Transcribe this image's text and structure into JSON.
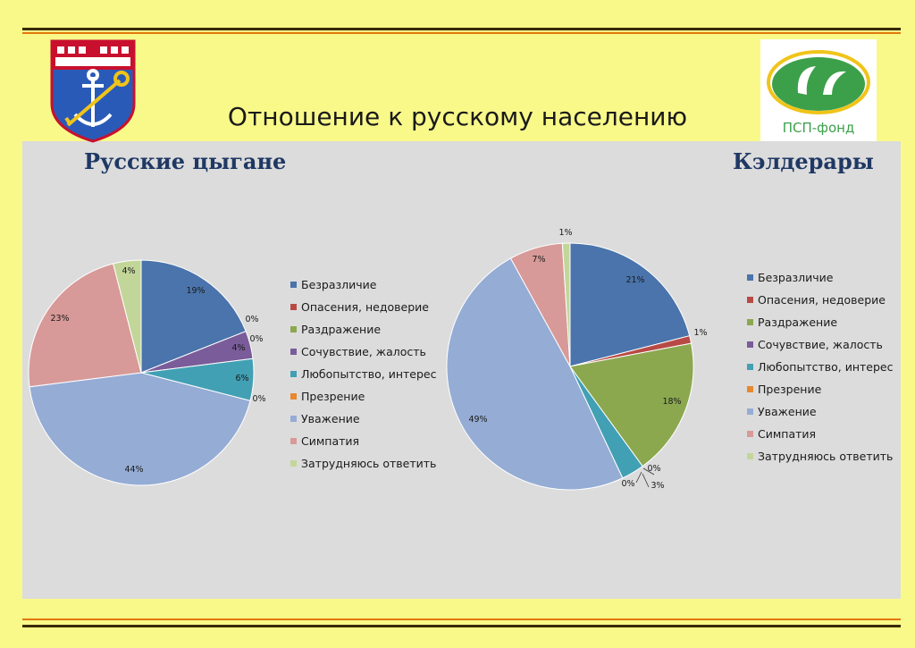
{
  "title": "Отношение к русскому населению",
  "logo_text": "ПСП-фонд",
  "colors": {
    "background": "#f9f98a",
    "panel": "#dcdcdc",
    "subtitle": "#1f3864",
    "rule_dark": "#3a2a05",
    "rule_orange": "#e0780a"
  },
  "legend": [
    {
      "label": "Безразличие",
      "color": "#4a74ab"
    },
    {
      "label": "Опасения, недоверие",
      "color": "#b84a46"
    },
    {
      "label": "Раздражение",
      "color": "#8ba84f"
    },
    {
      "label": "Сочувствие, жалость",
      "color": "#7a5c9a"
    },
    {
      "label": "Любопытство, интерес",
      "color": "#42a0b4"
    },
    {
      "label": "Презрение",
      "color": "#e8882e"
    },
    {
      "label": "Уважение",
      "color": "#95acd5"
    },
    {
      "label": "Симпатия",
      "color": "#d79a98"
    },
    {
      "label": "Затрудняюсь ответить",
      "color": "#c3d69a"
    }
  ],
  "chart_data": [
    {
      "type": "pie",
      "title": "Русские цыгане",
      "categories": [
        "Безразличие",
        "Опасения, недоверие",
        "Раздражение",
        "Сочувствие, жалость",
        "Любопытство, интерес",
        "Презрение",
        "Уважение",
        "Симпатия",
        "Затрудняюсь ответить"
      ],
      "values": [
        19,
        0,
        0,
        4,
        6,
        0,
        44,
        23,
        4
      ],
      "labels": [
        "19%",
        "0%",
        "0%",
        "4%",
        "6%",
        "0%",
        "44%",
        "23%",
        "4%"
      ],
      "legend_position": "right"
    },
    {
      "type": "pie",
      "title": "Кэлдерары",
      "categories": [
        "Безразличие",
        "Опасения, недоверие",
        "Раздражение",
        "Сочувствие, жалость",
        "Любопытство, интерес",
        "Презрение",
        "Уважение",
        "Симпатия",
        "Затрудняюсь ответить"
      ],
      "values": [
        21,
        1,
        18,
        0,
        3,
        0,
        49,
        7,
        1
      ],
      "labels": [
        "21%",
        "1%",
        "18%",
        "0%",
        "3%",
        "0%",
        "49%",
        "7%",
        "1%"
      ],
      "legend_position": "right"
    }
  ]
}
